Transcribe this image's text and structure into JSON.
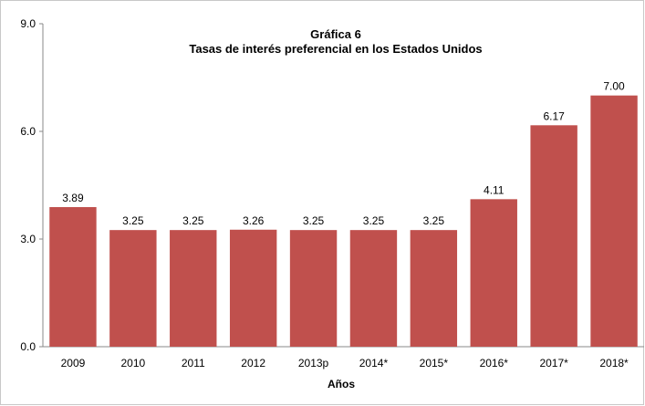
{
  "chart_data": {
    "type": "bar",
    "title": "Gráfica 6",
    "subtitle": "Tasas de interés preferencial en los Estados Unidos",
    "xlabel": "Años",
    "ylabel": "",
    "categories": [
      "2009",
      "2010",
      "2011",
      "2012",
      "2013p",
      "2014*",
      "2015*",
      "2016*",
      "2017*",
      "2018*"
    ],
    "values": [
      3.89,
      3.25,
      3.25,
      3.26,
      3.25,
      3.25,
      3.25,
      4.11,
      6.17,
      7.0
    ],
    "data_labels": [
      "3.89",
      "3.25",
      "3.25",
      "3.26",
      "3.25",
      "3.25",
      "3.25",
      "4.11",
      "6.17",
      "7.00"
    ],
    "ylim": [
      0,
      9
    ],
    "yticks": [
      "0.0",
      "3.0",
      "6.0",
      "9.0"
    ],
    "grid": false,
    "legend": "none",
    "bar_color": "#c0504d"
  }
}
